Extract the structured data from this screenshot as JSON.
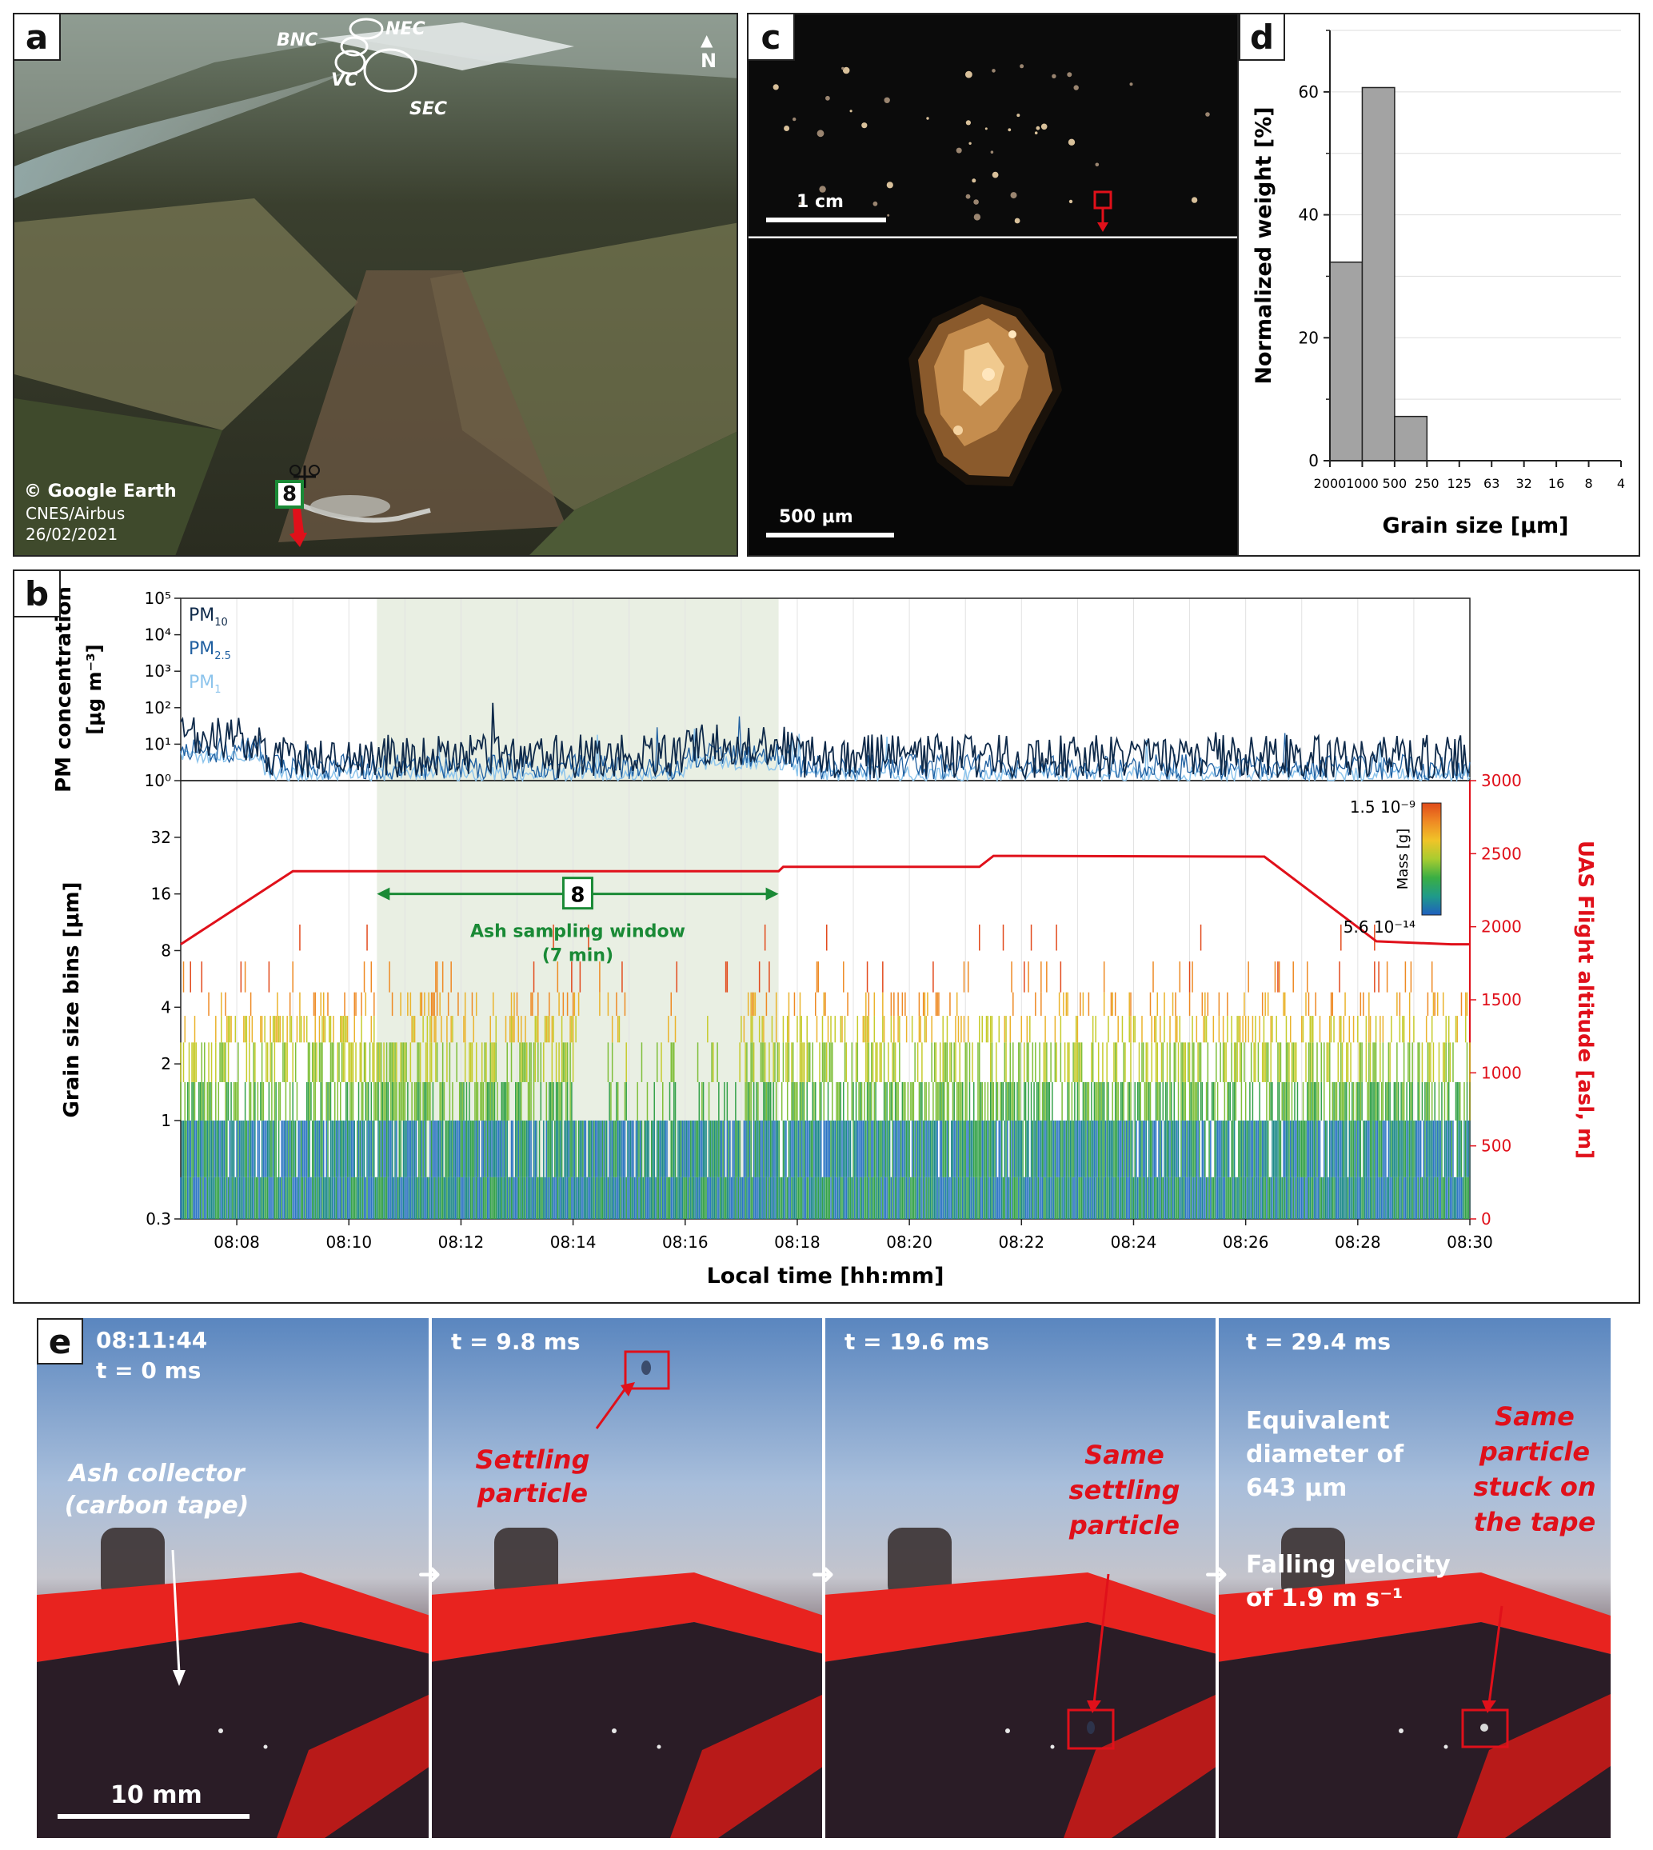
{
  "panel_a": {
    "label": "a",
    "craters": [
      "BNC",
      "NEC",
      "VC",
      "SEC"
    ],
    "north": "N",
    "site": "8",
    "credit_line1": "© Google Earth",
    "credit_line2": "CNES/Airbus",
    "credit_line3": "26/02/2021"
  },
  "panel_c": {
    "label": "c",
    "scale_top": "1 cm",
    "scale_bottom": "500 μm"
  },
  "panel_d": {
    "label": "d",
    "chart_data": {
      "type": "bar",
      "categories": [
        "2000-1000",
        "1000-500",
        "500-250",
        "250-125",
        "125-63",
        "63-32",
        "32-16",
        "16-8",
        "8-4"
      ],
      "x_ticks": [
        "2000",
        "1000",
        "500",
        "250",
        "125",
        "63",
        "32",
        "16",
        "8",
        "4"
      ],
      "values": [
        32.3,
        60.7,
        7.2,
        0,
        0,
        0,
        0,
        0,
        0
      ],
      "xlabel": "Grain size [μm]",
      "ylabel": "Normalized weight [%]",
      "ylim": [
        0,
        70
      ],
      "y_ticks": [
        "0",
        "20",
        "40",
        "60"
      ],
      "grid": true
    }
  },
  "panel_b": {
    "label": "b",
    "pm_ylabel_line1": "PM concentration",
    "pm_ylabel_line2": "[μg m⁻³]",
    "pm_yticks": [
      "10⁵",
      "10⁴",
      "10³",
      "10²",
      "10¹",
      "10⁰"
    ],
    "legend": [
      {
        "name": "PM10",
        "base": "PM",
        "sub": "10",
        "color": "#0f2a4a"
      },
      {
        "name": "PM2.5",
        "base": "PM",
        "sub": "2.5",
        "color": "#1f5fa0"
      },
      {
        "name": "PM1",
        "base": "PM",
        "sub": "1",
        "color": "#8cc4ec"
      }
    ],
    "grain_ylabel": "Grain size bins [μm]",
    "grain_yticks": [
      "32",
      "16",
      "8",
      "4",
      "2",
      "1",
      "0.3"
    ],
    "alt_ylabel": "UAS Flight altitude [asl, m]",
    "alt_yticks": [
      "3000",
      "2500",
      "2000",
      "1500",
      "1000",
      "500",
      "0"
    ],
    "xlabel": "Local time [hh:mm]",
    "x_ticks": [
      "08:08",
      "08:10",
      "08:12",
      "08:14",
      "08:16",
      "08:18",
      "08:20",
      "08:22",
      "08:24",
      "08:26",
      "08:28",
      "08:30"
    ],
    "colorbar_max": "1.5 10⁻⁹",
    "colorbar_min": "5.6 10⁻¹⁴",
    "colorbar_label": "Mass [g]",
    "window_site": "8",
    "window_label_line1": "Ash sampling window",
    "window_label_line2": "(7 min)",
    "chart_data": {
      "type": "line",
      "x_range": [
        "08:07",
        "08:30"
      ],
      "window": [
        "08:10:30",
        "08:17:40"
      ],
      "altitude_series": {
        "name": "UAS Flight altitude",
        "x": [
          "08:07",
          "08:09",
          "08:17:40",
          "08:17:45",
          "08:21:15",
          "08:21:30",
          "08:26:20",
          "08:28:20",
          "08:29:40",
          "08:30"
        ],
        "y": [
          1880,
          2380,
          2380,
          2410,
          2410,
          2485,
          2480,
          1900,
          1880,
          1880
        ]
      },
      "pm_range": [
        1,
        100000
      ],
      "grain_bins": [
        0.3,
        0.5,
        1,
        2,
        3,
        4,
        5,
        8,
        10,
        16,
        32
      ]
    }
  },
  "panel_e": {
    "label": "e",
    "frames": [
      {
        "line1": "08:11:44",
        "line2": "t = 0 ms"
      },
      {
        "line1": "t = 9.8 ms"
      },
      {
        "line1": "t = 19.6 ms"
      },
      {
        "line1": "t = 29.4 ms"
      }
    ],
    "collector_line1": "Ash collector",
    "collector_line2": "(carbon tape)",
    "settling_line1": "Settling",
    "settling_line2": "particle",
    "same_settling": [
      "Same",
      "settling",
      "particle"
    ],
    "same_stuck": [
      "Same",
      "particle",
      "stuck on",
      "the tape"
    ],
    "diameter": [
      "Equivalent",
      "diameter of",
      "643 μm"
    ],
    "velocity_line1": "Falling velocity",
    "velocity_line2": "of 1.9 m s⁻¹",
    "scale": "10 mm"
  }
}
